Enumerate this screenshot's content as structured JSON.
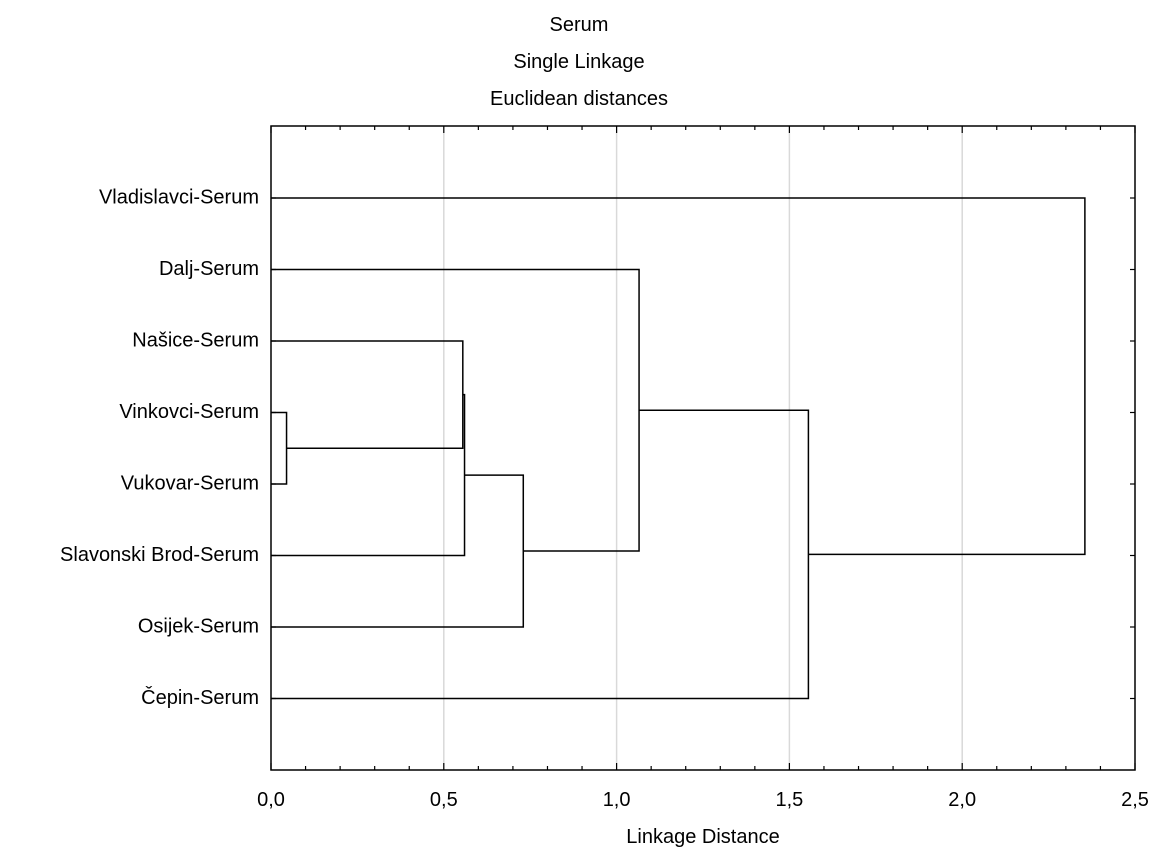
{
  "chart_data": {
    "type": "dendrogram",
    "title": [
      "Serum",
      "Single Linkage",
      "Euclidean distances"
    ],
    "xlabel": "Linkage Distance",
    "xlim": [
      0,
      2.5
    ],
    "x_ticks": [
      0,
      0.5,
      1.0,
      1.5,
      2.0,
      2.5
    ],
    "x_tick_labels": [
      "0,0",
      "0,5",
      "1,0",
      "1,5",
      "2,0",
      "2,5"
    ],
    "grid": "vertical",
    "leaves": [
      "Vladislavci-Serum",
      "Dalj-Serum",
      "Našice-Serum",
      "Vinkovci-Serum",
      "Vukovar-Serum",
      "Slavonski Brod-Serum",
      "Osijek-Serum",
      "Čepin-Serum"
    ],
    "merges": [
      {
        "id": "A",
        "children": [
          "Vinkovci-Serum",
          "Vukovar-Serum"
        ],
        "distance": 0.045
      },
      {
        "id": "B",
        "children": [
          "Našice-Serum",
          "A"
        ],
        "distance": 0.555
      },
      {
        "id": "C",
        "children": [
          "B",
          "Slavonski Brod-Serum"
        ],
        "distance": 0.56
      },
      {
        "id": "D",
        "children": [
          "C",
          "Osijek-Serum"
        ],
        "distance": 0.73
      },
      {
        "id": "E",
        "children": [
          "Dalj-Serum",
          "D"
        ],
        "distance": 1.065
      },
      {
        "id": "F",
        "children": [
          "E",
          "Čepin-Serum"
        ],
        "distance": 1.555
      },
      {
        "id": "G",
        "children": [
          "Vladislavci-Serum",
          "F"
        ],
        "distance": 2.355
      }
    ]
  }
}
